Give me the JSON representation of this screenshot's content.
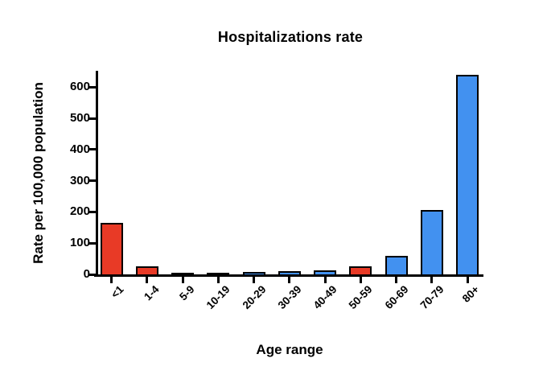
{
  "title": "Hospitalizations rate",
  "chart_data": {
    "type": "bar",
    "title": "Hospitalizations rate",
    "xlabel": "Age range",
    "ylabel": "Rate per 100,000 population",
    "categories": [
      "<1",
      "1-4",
      "5-9",
      "10-19",
      "20-29",
      "30-39",
      "40-49",
      "50-59",
      "60-69",
      "70-79",
      "80+"
    ],
    "values": [
      165,
      25,
      4,
      5,
      8,
      10,
      12,
      25,
      60,
      205,
      640
    ],
    "bar_colors": [
      "#e83a26",
      "#e83a26",
      "#4291f0",
      "#4291f0",
      "#4291f0",
      "#4291f0",
      "#4291f0",
      "#e83a26",
      "#4291f0",
      "#4291f0",
      "#4291f0"
    ],
    "outline_color": "#000000",
    "yticks": [
      0,
      100,
      200,
      300,
      400,
      500,
      600
    ],
    "ylim": [
      0,
      655
    ],
    "grid": false,
    "legend": null
  },
  "colors": {
    "red": "#e83a26",
    "blue": "#4291f0",
    "axis": "#000000",
    "background": "#ffffff"
  }
}
